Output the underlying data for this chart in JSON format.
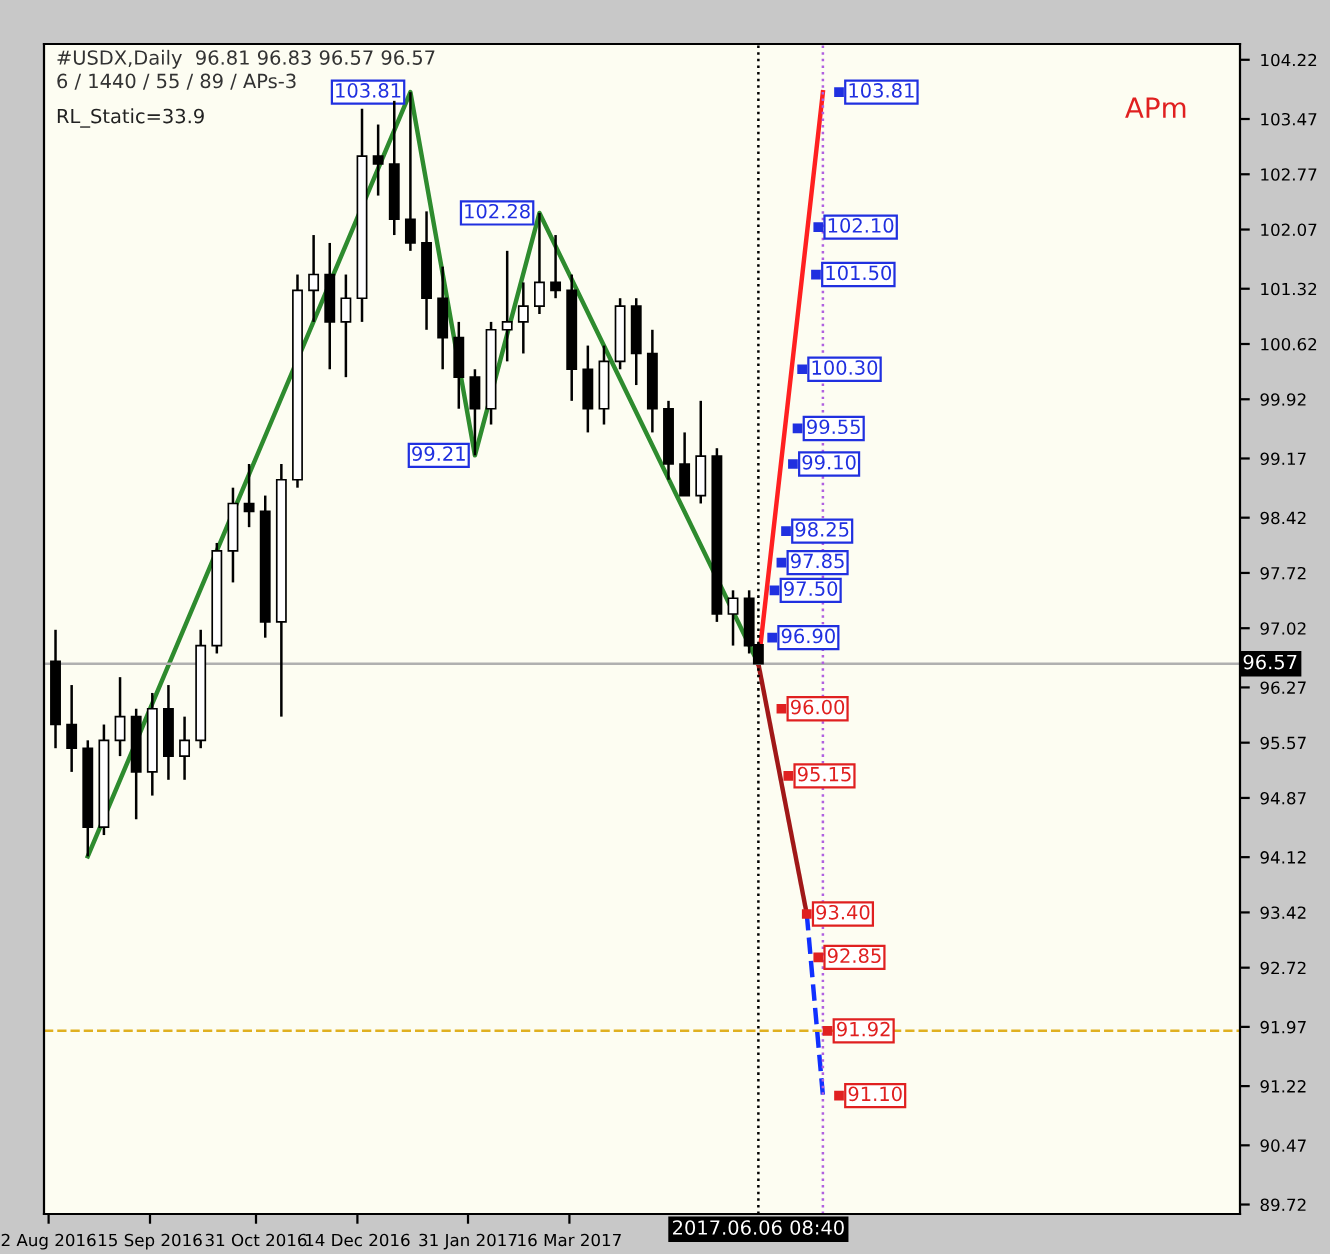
{
  "chart_data": {
    "type": "candlestick",
    "title": "#USDX,Daily  96.81 96.83 96.57 96.57",
    "subtitle": "6 / 1440 / 55 / 89 / APs-3",
    "x": [
      "2016-08-05",
      "2016-08-12",
      "2016-08-19",
      "2016-08-26",
      "2016-09-02",
      "2016-09-09",
      "2016-09-16",
      "2016-09-23",
      "2016-09-30",
      "2016-10-07",
      "2016-10-14",
      "2016-10-21",
      "2016-10-28",
      "2016-11-04",
      "2016-11-11",
      "2016-11-18",
      "2016-11-25",
      "2016-12-02",
      "2016-12-09",
      "2016-12-16",
      "2016-12-23",
      "2016-12-30",
      "2017-01-06",
      "2017-01-13",
      "2017-01-20",
      "2017-01-27",
      "2017-02-03",
      "2017-02-10",
      "2017-02-17",
      "2017-02-24",
      "2017-03-03",
      "2017-03-10",
      "2017-03-17",
      "2017-03-24",
      "2017-03-31",
      "2017-04-07",
      "2017-04-14",
      "2017-04-21",
      "2017-04-28",
      "2017-05-05",
      "2017-05-12",
      "2017-05-19",
      "2017-05-26",
      "2017-06-02",
      "2017-06-06"
    ],
    "ohlc": [
      [
        96.6,
        97.0,
        95.5,
        95.8
      ],
      [
        95.8,
        96.3,
        95.2,
        95.5
      ],
      [
        95.5,
        95.6,
        94.13,
        94.5
      ],
      [
        94.5,
        95.8,
        94.4,
        95.6
      ],
      [
        95.6,
        96.4,
        95.4,
        95.9
      ],
      [
        95.9,
        96.0,
        94.6,
        95.2
      ],
      [
        95.2,
        96.2,
        94.9,
        96.0
      ],
      [
        96.0,
        96.3,
        95.1,
        95.4
      ],
      [
        95.4,
        95.9,
        95.1,
        95.6
      ],
      [
        95.6,
        97.0,
        95.5,
        96.8
      ],
      [
        96.8,
        98.1,
        96.7,
        98.0
      ],
      [
        98.0,
        98.8,
        97.6,
        98.6
      ],
      [
        98.6,
        99.1,
        98.3,
        98.5
      ],
      [
        98.5,
        98.7,
        96.9,
        97.1
      ],
      [
        97.1,
        99.1,
        95.9,
        98.9
      ],
      [
        98.9,
        101.5,
        98.8,
        101.3
      ],
      [
        101.3,
        102.0,
        100.9,
        101.5
      ],
      [
        101.5,
        101.9,
        100.3,
        100.9
      ],
      [
        100.9,
        101.5,
        100.2,
        101.2
      ],
      [
        101.2,
        103.6,
        100.9,
        103.0
      ],
      [
        103.0,
        103.4,
        102.5,
        102.9
      ],
      [
        102.9,
        103.7,
        102.0,
        102.2
      ],
      [
        102.2,
        103.81,
        101.8,
        101.9
      ],
      [
        101.9,
        102.3,
        100.8,
        101.2
      ],
      [
        101.2,
        101.6,
        100.3,
        100.7
      ],
      [
        100.7,
        100.9,
        99.8,
        100.2
      ],
      [
        100.2,
        100.3,
        99.21,
        99.8
      ],
      [
        99.8,
        100.9,
        99.6,
        100.8
      ],
      [
        100.8,
        101.8,
        100.4,
        100.9
      ],
      [
        100.9,
        101.4,
        100.5,
        101.1
      ],
      [
        101.1,
        102.28,
        101.0,
        101.4
      ],
      [
        101.4,
        102.0,
        101.2,
        101.3
      ],
      [
        101.3,
        101.5,
        99.9,
        100.3
      ],
      [
        100.3,
        100.6,
        99.5,
        99.8
      ],
      [
        99.8,
        100.6,
        99.6,
        100.4
      ],
      [
        100.4,
        101.2,
        100.3,
        101.1
      ],
      [
        101.1,
        101.2,
        100.1,
        100.5
      ],
      [
        100.5,
        100.8,
        99.5,
        99.8
      ],
      [
        99.8,
        99.9,
        98.9,
        99.1
      ],
      [
        99.1,
        99.5,
        98.7,
        98.7
      ],
      [
        98.7,
        99.9,
        98.6,
        99.2
      ],
      [
        99.2,
        99.3,
        97.1,
        97.2
      ],
      [
        97.2,
        97.5,
        96.8,
        97.4
      ],
      [
        97.4,
        97.5,
        96.7,
        96.8
      ],
      [
        96.81,
        96.83,
        96.57,
        96.57
      ]
    ],
    "series": [
      {
        "type": "line",
        "color": "#2e8b2e",
        "x": [
          "2016-08-19",
          "2017-01-06",
          "2017-02-03",
          "2017-03-03",
          "2017-06-06"
        ],
        "values": [
          94.13,
          103.81,
          99.21,
          102.28,
          96.57
        ]
      },
      {
        "type": "line",
        "color": "#ff2020",
        "x": [
          "2017-06-06",
          "2017-07-04"
        ],
        "values": [
          96.57,
          103.81
        ]
      },
      {
        "type": "line",
        "color": "#a01818",
        "x": [
          "2017-06-06",
          "2017-06-27"
        ],
        "values": [
          96.57,
          93.4
        ]
      },
      {
        "type": "line",
        "color": "#1030ff",
        "line_style": "dashed",
        "x": [
          "2017-06-27",
          "2017-07-04"
        ],
        "values": [
          93.4,
          91.1
        ]
      }
    ],
    "xlim": [
      "2016-07-31",
      "2018-01-01"
    ],
    "ylim": [
      89.6,
      104.42
    ],
    "xticks": [
      {
        "value": "2016-08-02",
        "label": "2 Aug 2016"
      },
      {
        "value": "2016-09-15",
        "label": "15 Sep 2016"
      },
      {
        "value": "2016-10-31",
        "label": "31 Oct 2016"
      },
      {
        "value": "2016-12-14",
        "label": "14 Dec 2016"
      },
      {
        "value": "2017-01-31",
        "label": "31 Jan 2017"
      },
      {
        "value": "2017-03-16",
        "label": "16 Mar 2017"
      }
    ],
    "yticks": [
      104.22,
      103.47,
      102.77,
      102.07,
      101.32,
      100.62,
      99.92,
      99.17,
      98.42,
      97.72,
      97.02,
      96.27,
      95.57,
      94.87,
      94.12,
      93.42,
      92.72,
      91.97,
      91.22,
      90.47,
      89.72
    ],
    "ref_lines": [
      {
        "axis": "y",
        "value": 96.57,
        "label": "96.57",
        "color": "#b0b0b0",
        "line_style": "solid"
      },
      {
        "axis": "x",
        "value": "2017-06-06",
        "label": "2017.06.06 08:40",
        "color": "#000000",
        "line_style": "dotted"
      },
      {
        "axis": "x",
        "value": "2017-07-04",
        "color": "#b060e0",
        "line_style": "dotted"
      },
      {
        "axis": "y",
        "value": 91.92,
        "color": "#e0b020",
        "line_style": "dashed"
      }
    ],
    "annotations": [
      "RL_Static=33.9",
      "APm",
      {
        "text": "103.81",
        "x": "2017-07-11",
        "y": 103.81
      },
      {
        "text": "102.10",
        "x": "2017-07-02",
        "y": 102.1
      },
      {
        "text": "101.50",
        "x": "2017-07-01",
        "y": 101.5
      },
      {
        "text": "100.30",
        "x": "2017-06-25",
        "y": 100.3
      },
      {
        "text": "99.55",
        "x": "2017-06-23",
        "y": 99.55
      },
      {
        "text": "99.10",
        "x": "2017-06-21",
        "y": 99.1
      },
      {
        "text": "98.25",
        "x": "2017-06-18",
        "y": 98.25
      },
      {
        "text": "97.85",
        "x": "2017-06-16",
        "y": 97.85
      },
      {
        "text": "97.50",
        "x": "2017-06-13",
        "y": 97.5
      },
      {
        "text": "96.90",
        "x": "2017-06-12",
        "y": 96.9
      },
      {
        "text": "96.00",
        "x": "2017-06-16",
        "y": 96.0
      },
      {
        "text": "95.15",
        "x": "2017-06-19",
        "y": 95.15
      },
      {
        "text": "93.40",
        "x": "2017-06-27",
        "y": 93.4
      },
      {
        "text": "92.85",
        "x": "2017-07-02",
        "y": 92.85
      },
      {
        "text": "91.92",
        "x": "2017-07-06",
        "y": 91.92
      },
      {
        "text": "91.10",
        "x": "2017-07-11",
        "y": 91.1
      },
      {
        "text": "103.81",
        "x": "2017-01-06",
        "y": 103.81
      },
      {
        "text": "102.28",
        "x": "2017-03-03",
        "y": 102.28
      },
      {
        "text": "99.21",
        "x": "2017-02-03",
        "y": 99.21
      }
    ],
    "grid": false
  }
}
